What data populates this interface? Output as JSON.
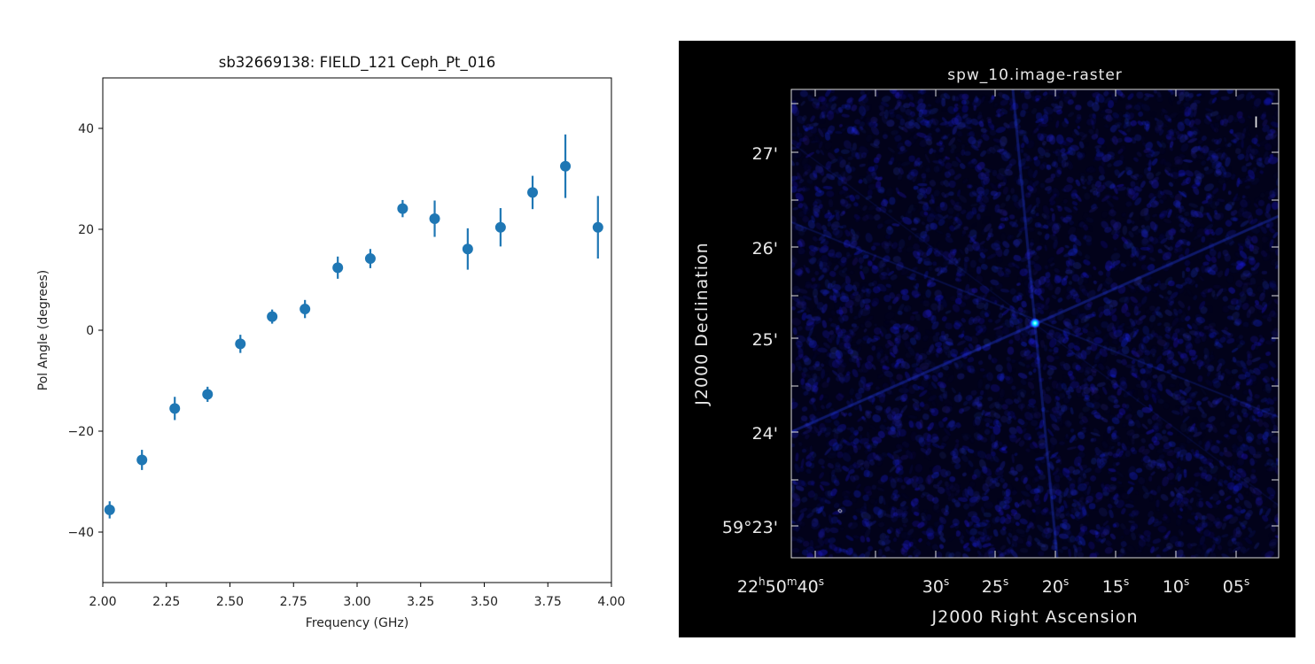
{
  "chart_data": [
    {
      "type": "scatter",
      "subtype": "errorbar",
      "title": "sb32669138: FIELD_121   Ceph_Pt_016",
      "xlabel": "Frequency (GHz)",
      "ylabel": "Pol Angle (degrees)",
      "xlim": [
        2.0,
        4.0
      ],
      "ylim": [
        -50,
        50
      ],
      "xticks": [
        "2.00",
        "2.25",
        "2.50",
        "2.75",
        "3.00",
        "3.25",
        "3.50",
        "3.75",
        "4.00"
      ],
      "xtick_values": [
        2.0,
        2.25,
        2.5,
        2.75,
        3.0,
        3.25,
        3.5,
        3.75,
        4.0
      ],
      "yticks": [
        "−40",
        "−20",
        "0",
        "20",
        "40"
      ],
      "ytick_values": [
        -40,
        -20,
        0,
        20,
        40
      ],
      "color": "#1f77b4",
      "x": [
        2.027,
        2.154,
        2.283,
        2.412,
        2.541,
        2.666,
        2.795,
        2.924,
        3.052,
        3.179,
        3.305,
        3.435,
        3.564,
        3.69,
        3.819,
        3.947
      ],
      "y": [
        -35.6,
        -25.7,
        -15.5,
        -12.7,
        -2.7,
        2.7,
        4.2,
        12.4,
        14.2,
        24.1,
        22.1,
        16.1,
        20.4,
        27.3,
        32.5,
        20.4
      ],
      "yerr": [
        1.7,
        2.0,
        2.3,
        1.5,
        1.8,
        1.4,
        1.8,
        2.2,
        1.9,
        1.7,
        3.6,
        4.1,
        3.8,
        3.3,
        6.3,
        6.2
      ]
    },
    {
      "type": "heatmap",
      "title": "spw_10.image-raster",
      "xlabel": "J2000 Right Ascension",
      "ylabel": "J2000 Declination",
      "xticks": [
        {
          "main": "22",
          "sup1": "h",
          "mid": "50",
          "sup2": "m",
          "end": "40",
          "sup3": "s"
        },
        {
          "end": "30",
          "sup3": "s"
        },
        {
          "end": "25",
          "sup3": "s"
        },
        {
          "end": "20",
          "sup3": "s"
        },
        {
          "end": "15",
          "sup3": "s"
        },
        {
          "end": "10",
          "sup3": "s"
        },
        {
          "end": "05",
          "sup3": "s"
        }
      ],
      "yticks": [
        "27'",
        "26'",
        "25'",
        "24'",
        "59°23'"
      ],
      "stokes_label": "I",
      "colormap": [
        "#000000",
        "#0a0a60",
        "#1a2cff",
        "#00ffff"
      ]
    }
  ]
}
